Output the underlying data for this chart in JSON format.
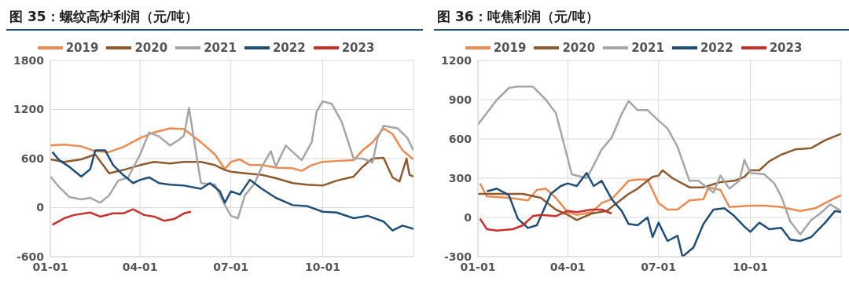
{
  "chart_data": [
    {
      "type": "line",
      "title": "图 35：螺纹高炉利润（元/吨）",
      "xlim": [
        "--01-01",
        "--12-31"
      ],
      "xticks": [
        {
          "value": "--01-01",
          "label": "01-01"
        },
        {
          "value": "--04-01",
          "label": "04-01"
        },
        {
          "value": "--07-01",
          "label": "07-01"
        },
        {
          "value": "--10-01",
          "label": "10-01"
        }
      ],
      "ylim": [
        -600,
        1800
      ],
      "yticks": [
        -600,
        0,
        600,
        1200,
        1800
      ],
      "grid": true,
      "legend": "top",
      "marker": "none",
      "line_style": "solid",
      "series": [
        {
          "name": "2019",
          "color": "#ed8a52",
          "x": [
            "--01-01",
            "--01-15",
            "--02-01",
            "--02-15",
            "--03-01",
            "--03-15",
            "--04-01",
            "--04-15",
            "--05-01",
            "--05-15",
            "--06-01",
            "--06-15",
            "--06-25",
            "--07-01",
            "--07-10",
            "--07-20",
            "--08-01",
            "--08-15",
            "--09-01",
            "--09-10",
            "--09-20",
            "--10-01",
            "--10-15",
            "--11-01",
            "--11-10",
            "--11-20",
            "--12-01",
            "--12-10",
            "--12-20",
            "--12-31"
          ],
          "values": [
            760,
            770,
            750,
            690,
            680,
            740,
            850,
            920,
            970,
            960,
            800,
            650,
            470,
            560,
            590,
            520,
            520,
            490,
            480,
            450,
            520,
            560,
            570,
            580,
            700,
            800,
            970,
            900,
            700,
            590
          ]
        },
        {
          "name": "2020",
          "color": "#8e5a2e",
          "x": [
            "--01-01",
            "--01-15",
            "--02-01",
            "--02-15",
            "--03-01",
            "--03-15",
            "--04-01",
            "--04-15",
            "--05-01",
            "--05-15",
            "--06-01",
            "--06-15",
            "--06-25",
            "--07-01",
            "--07-15",
            "--08-01",
            "--08-15",
            "--09-01",
            "--09-15",
            "--10-01",
            "--10-15",
            "--11-01",
            "--11-10",
            "--11-20",
            "--12-01",
            "--12-10",
            "--12-17",
            "--12-24",
            "--12-27",
            "--12-31"
          ],
          "values": [
            590,
            560,
            590,
            650,
            420,
            460,
            520,
            560,
            540,
            560,
            560,
            520,
            460,
            440,
            420,
            400,
            360,
            300,
            280,
            270,
            330,
            380,
            500,
            600,
            610,
            370,
            320,
            600,
            400,
            380
          ]
        },
        {
          "name": "2021",
          "color": "#a6a6a6",
          "x": [
            "--01-01",
            "--01-10",
            "--01-20",
            "--02-01",
            "--02-10",
            "--02-20",
            "--03-01",
            "--03-10",
            "--03-20",
            "--04-01",
            "--04-10",
            "--04-20",
            "--05-01",
            "--05-10",
            "--05-15",
            "--05-20",
            "--05-28",
            "--06-01",
            "--06-15",
            "--06-25",
            "--07-01",
            "--07-08",
            "--07-15",
            "--07-25",
            "--08-01",
            "--08-10",
            "--08-15",
            "--08-25",
            "--09-01",
            "--09-10",
            "--09-20",
            "--09-25",
            "--10-01",
            "--10-10",
            "--10-20",
            "--11-01",
            "--11-10",
            "--11-20",
            "--11-25",
            "--12-01",
            "--12-15",
            "--12-25",
            "--12-31"
          ],
          "values": [
            380,
            250,
            130,
            100,
            120,
            60,
            150,
            330,
            370,
            650,
            920,
            870,
            760,
            830,
            880,
            1220,
            600,
            300,
            280,
            30,
            -100,
            -130,
            150,
            300,
            500,
            690,
            500,
            760,
            680,
            580,
            800,
            1180,
            1300,
            1270,
            1050,
            600,
            600,
            550,
            850,
            1000,
            970,
            850,
            700
          ]
        },
        {
          "name": "2022",
          "color": "#1f4e79",
          "x": [
            "--01-03",
            "--01-10",
            "--01-20",
            "--02-01",
            "--02-10",
            "--02-15",
            "--02-25",
            "--03-05",
            "--03-15",
            "--03-25",
            "--04-01",
            "--04-10",
            "--04-20",
            "--05-01",
            "--05-15",
            "--06-01",
            "--06-10",
            "--06-20",
            "--06-25",
            "--07-01",
            "--07-10",
            "--07-20",
            "--08-01",
            "--08-15",
            "--09-01",
            "--09-15",
            "--10-01",
            "--10-15",
            "--11-01",
            "--11-15",
            "--12-01",
            "--12-10",
            "--12-20",
            "--12-31"
          ],
          "values": [
            680,
            580,
            500,
            380,
            470,
            700,
            700,
            520,
            400,
            300,
            340,
            370,
            300,
            280,
            270,
            230,
            300,
            200,
            60,
            200,
            160,
            340,
            230,
            120,
            30,
            20,
            -50,
            -60,
            -130,
            -100,
            -170,
            -280,
            -220,
            -260
          ]
        },
        {
          "name": "2023",
          "color": "#c9302c",
          "x": [
            "--01-03",
            "--01-15",
            "--01-25",
            "--02-10",
            "--02-20",
            "--03-05",
            "--03-15",
            "--03-25",
            "--04-05",
            "--04-15",
            "--04-25",
            "--05-05",
            "--05-15",
            "--05-22"
          ],
          "values": [
            -210,
            -130,
            -90,
            -60,
            -110,
            -70,
            -70,
            -20,
            -90,
            -110,
            -160,
            -140,
            -70,
            -50
          ]
        }
      ]
    },
    {
      "type": "line",
      "title": "图 36：吨焦利润（元/吨）",
      "xlim": [
        "--01-01",
        "--12-31"
      ],
      "xticks": [
        {
          "value": "--01-01",
          "label": "01-01"
        },
        {
          "value": "--04-01",
          "label": "04-01"
        },
        {
          "value": "--07-01",
          "label": "07-01"
        },
        {
          "value": "--10-01",
          "label": "10-01"
        }
      ],
      "ylim": [
        -300,
        1200
      ],
      "yticks": [
        -300,
        0,
        300,
        600,
        900,
        1200
      ],
      "grid": true,
      "legend": "top",
      "marker": "none",
      "line_style": "solid",
      "series": [
        {
          "name": "2019",
          "color": "#ed8a52",
          "x": [
            "--01-03",
            "--01-10",
            "--02-01",
            "--02-20",
            "--03-01",
            "--03-10",
            "--03-20",
            "--04-01",
            "--04-10",
            "--04-25",
            "--05-05",
            "--05-15",
            "--06-01",
            "--06-10",
            "--06-20",
            "--07-01",
            "--07-10",
            "--07-20",
            "--08-01",
            "--08-15",
            "--08-20",
            "--09-01",
            "--09-10",
            "--10-01",
            "--10-15",
            "--11-01",
            "--11-20",
            "--12-05",
            "--12-20",
            "--12-31"
          ],
          "values": [
            260,
            160,
            150,
            130,
            210,
            220,
            150,
            40,
            20,
            40,
            110,
            140,
            280,
            290,
            290,
            110,
            60,
            60,
            130,
            140,
            230,
            210,
            80,
            90,
            90,
            80,
            50,
            70,
            130,
            170
          ]
        },
        {
          "name": "2020",
          "color": "#8e5a2e",
          "x": [
            "--01-01",
            "--02-15",
            "--03-05",
            "--03-20",
            "--04-01",
            "--04-10",
            "--04-25",
            "--05-10",
            "--06-01",
            "--06-10",
            "--06-25",
            "--07-01",
            "--07-05",
            "--07-15",
            "--08-01",
            "--08-15",
            "--09-01",
            "--09-15",
            "--09-25",
            "--10-01",
            "--10-10",
            "--10-20",
            "--11-01",
            "--11-15",
            "--12-01",
            "--12-15",
            "--12-31"
          ],
          "values": [
            180,
            180,
            150,
            60,
            20,
            -20,
            30,
            50,
            180,
            220,
            310,
            320,
            360,
            300,
            230,
            230,
            270,
            280,
            310,
            360,
            360,
            430,
            480,
            520,
            530,
            590,
            640
          ]
        },
        {
          "name": "2021",
          "color": "#a6a6a6",
          "x": [
            "--01-01",
            "--01-20",
            "--02-01",
            "--02-10",
            "--02-25",
            "--03-10",
            "--03-20",
            "--04-01",
            "--04-05",
            "--04-20",
            "--04-25",
            "--05-05",
            "--05-15",
            "--05-25",
            "--06-01",
            "--06-10",
            "--06-20",
            "--07-01",
            "--07-10",
            "--07-20",
            "--08-01",
            "--08-10",
            "--08-25",
            "--09-01",
            "--09-10",
            "--09-20",
            "--09-25",
            "--10-01",
            "--10-15",
            "--10-25",
            "--11-01",
            "--11-10",
            "--11-20",
            "--12-01",
            "--12-10",
            "--12-20",
            "--12-31"
          ],
          "values": [
            710,
            900,
            990,
            1000,
            1000,
            900,
            800,
            450,
            330,
            300,
            370,
            520,
            610,
            790,
            890,
            820,
            820,
            740,
            680,
            540,
            280,
            280,
            190,
            320,
            220,
            280,
            440,
            340,
            330,
            260,
            160,
            -30,
            -130,
            -20,
            30,
            100,
            50
          ]
        },
        {
          "name": "2022",
          "color": "#1f4e79",
          "x": [
            "--01-10",
            "--01-20",
            "--02-01",
            "--02-10",
            "--02-20",
            "--03-01",
            "--03-15",
            "--03-25",
            "--04-01",
            "--04-10",
            "--04-20",
            "--04-27",
            "--05-05",
            "--05-15",
            "--05-25",
            "--06-01",
            "--06-10",
            "--06-20",
            "--06-25",
            "--07-01",
            "--07-10",
            "--07-20",
            "--07-25",
            "--08-05",
            "--08-15",
            "--08-25",
            "--09-05",
            "--09-15",
            "--09-25",
            "--10-01",
            "--10-10",
            "--10-20",
            "--11-01",
            "--11-10",
            "--11-20",
            "--12-01",
            "--12-15",
            "--12-25",
            "--12-31"
          ],
          "values": [
            200,
            220,
            170,
            -10,
            -80,
            -60,
            180,
            240,
            260,
            240,
            340,
            240,
            280,
            140,
            50,
            -50,
            -60,
            0,
            -150,
            -40,
            -180,
            -140,
            -300,
            -230,
            -50,
            60,
            70,
            10,
            -70,
            -110,
            -40,
            -90,
            -80,
            -170,
            -180,
            -150,
            -40,
            50,
            40
          ]
        },
        {
          "name": "2023",
          "color": "#c9302c",
          "x": [
            "--01-03",
            "--01-10",
            "--01-20",
            "--02-05",
            "--02-15",
            "--02-25",
            "--03-05",
            "--03-20",
            "--04-01",
            "--04-10",
            "--04-25",
            "--05-05",
            "--05-15"
          ],
          "values": [
            -10,
            -90,
            -100,
            -90,
            -60,
            10,
            20,
            10,
            50,
            40,
            60,
            60,
            30
          ]
        }
      ]
    }
  ]
}
